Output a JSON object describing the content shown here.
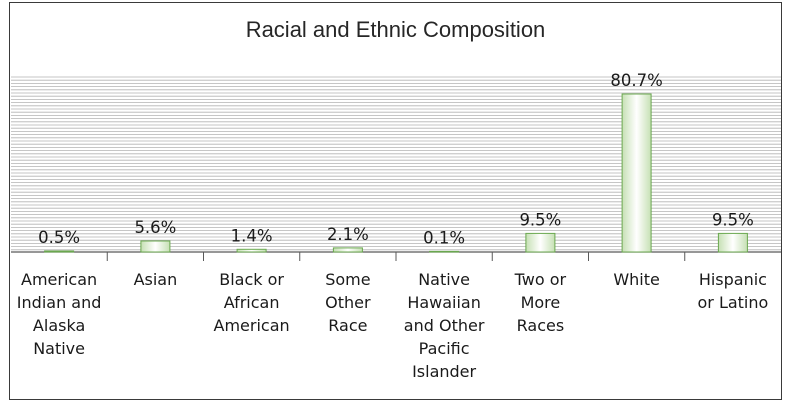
{
  "chart_data": {
    "type": "bar",
    "title": "Racial and Ethnic Composition",
    "categories": [
      "American Indian and Alaska Native",
      "Asian",
      "Black or African American",
      "Some Other Race",
      "Native Hawaiian and Other Pacific Islander",
      "Two or More Races",
      "White",
      "Hispanic or Latino"
    ],
    "category_lines": [
      [
        "American",
        "Indian and",
        "Alaska",
        "Native"
      ],
      [
        "Asian"
      ],
      [
        "Black or",
        "African",
        "American"
      ],
      [
        "Some",
        "Other",
        "Race"
      ],
      [
        "Native",
        "Hawaiian",
        "and Other",
        "Pacific",
        "Islander"
      ],
      [
        "Two or",
        "More",
        "Races"
      ],
      [
        "White"
      ],
      [
        "Hispanic",
        "or Latino"
      ]
    ],
    "values": [
      0.5,
      5.6,
      1.4,
      2.1,
      0.1,
      9.5,
      80.7,
      9.5
    ],
    "data_labels": [
      "0.5%",
      "5.6%",
      "1.4%",
      "2.1%",
      "0.1%",
      "9.5%",
      "80.7%",
      "9.5%"
    ],
    "xlabel": "",
    "ylabel": "",
    "ylim": [
      0,
      100
    ],
    "grid": true,
    "legend": "none",
    "colors": {
      "bar_edge": "#6aa84f",
      "bar_fill_center": "#ffffff",
      "bar_fill_edge": "#c6e0b4",
      "gridline": "#b3b3b3",
      "axis": "#595959"
    }
  }
}
